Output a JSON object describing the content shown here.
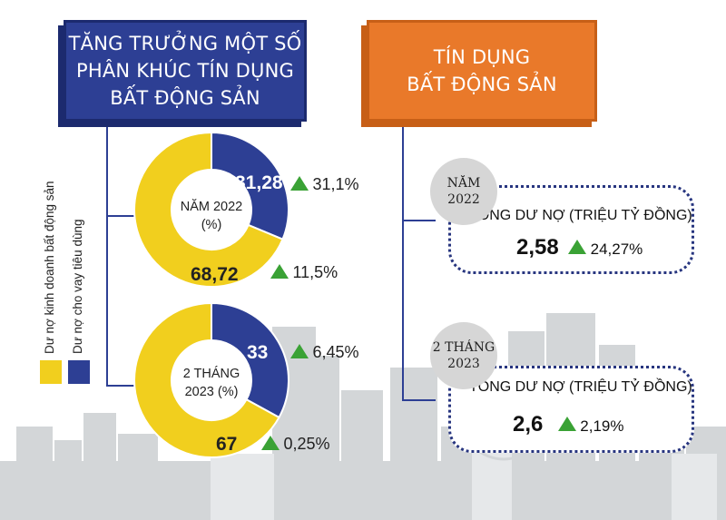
{
  "left_title": {
    "line1": "TĂNG TRƯỞNG MỘT SỐ",
    "line2": "PHÂN KHÚC TÍN DỤNG",
    "line3": "BẤT ĐỘNG SẢN"
  },
  "right_title": {
    "line1": "TÍN DỤNG",
    "line2": "BẤT ĐỘNG SẢN"
  },
  "legend": [
    {
      "label": "Dư nợ kinh doanh bất động sản",
      "color": "#f1cf1e"
    },
    {
      "label": "Dư nợ cho vay tiêu dùng",
      "color": "#2d3f94"
    }
  ],
  "colors": {
    "blue": "#2d3f94",
    "yellow": "#f1cf1e",
    "orange": "#e9792a",
    "green": "#3aa235",
    "city": "#cfd2d4"
  },
  "chart_data": [
    {
      "type": "pie",
      "center_label": {
        "line1": "NĂM 2022",
        "line2": "(%)"
      },
      "slices": [
        {
          "series": "Dư nợ cho vay tiêu dùng",
          "value": 31.28,
          "label": "31,28",
          "growth": "31,1%"
        },
        {
          "series": "Dư nợ kinh doanh bất động sản",
          "value": 68.72,
          "label": "68,72",
          "growth": "11,5%"
        }
      ]
    },
    {
      "type": "pie",
      "center_label": {
        "line1": "2 THÁNG",
        "line2": "2023 (%)"
      },
      "slices": [
        {
          "series": "Dư nợ cho vay tiêu dùng",
          "value": 33,
          "label": "33",
          "growth": "6,45%"
        },
        {
          "series": "Dư nợ kinh doanh bất động sản",
          "value": 67,
          "label": "67",
          "growth": "0,25%"
        }
      ]
    }
  ],
  "credit": [
    {
      "period_line1": "NĂM",
      "period_line2": "2022",
      "caption": "TỔNG DƯ NỢ (TRIỆU TỶ ĐỒNG)",
      "value": "2,58",
      "growth": "24,27%"
    },
    {
      "period_line1": "2 THÁNG",
      "period_line2": "2023",
      "caption": "TỔNG DƯ NỢ (TRIỆU TỶ ĐỒNG)",
      "value": "2,6",
      "growth": "2,19%"
    }
  ]
}
